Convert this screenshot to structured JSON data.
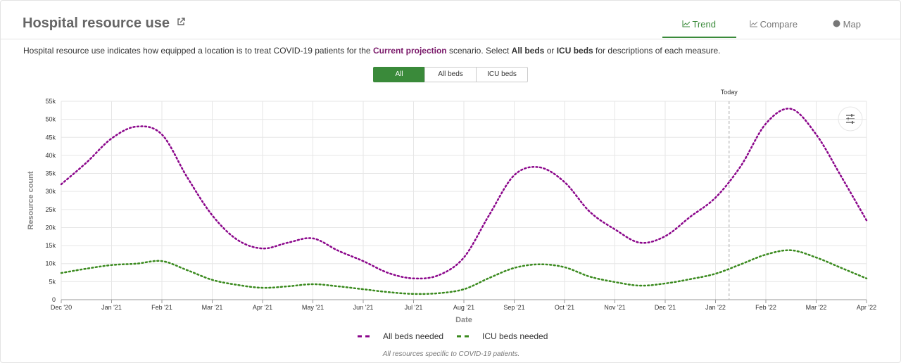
{
  "header": {
    "title": "Hospital resource use",
    "tabs": [
      "Trend",
      "Compare",
      "Map"
    ]
  },
  "description": [
    "Hospital resource use indicates how equipped a location is to treat COVID-19 patients for the ",
    "Current projection",
    " scenario. Select ",
    "All beds",
    " or ",
    "ICU beds",
    " for descriptions of each measure."
  ],
  "toggle": [
    "All",
    "All beds",
    "ICU beds"
  ],
  "chart_data": {
    "type": "line",
    "x_label": "Date",
    "y_label": "Resource count",
    "x": [
      0,
      0.5,
      1,
      1.5,
      2,
      2.5,
      3,
      3.5,
      4,
      4.5,
      5,
      5.5,
      6,
      6.5,
      7,
      7.5,
      8,
      8.5,
      9,
      9.5,
      10,
      10.5,
      11,
      11.5,
      12,
      12.5,
      13,
      13.5,
      14,
      14.5,
      15,
      15.5,
      16
    ],
    "xlim": [
      0,
      16
    ],
    "xticks": [
      {
        "value": 0,
        "label": "Dec '20"
      },
      {
        "value": 1,
        "label": "Jan '21"
      },
      {
        "value": 2,
        "label": "Feb '21"
      },
      {
        "value": 3,
        "label": "Mar '21"
      },
      {
        "value": 4,
        "label": "Apr '21"
      },
      {
        "value": 5,
        "label": "May '21"
      },
      {
        "value": 6,
        "label": "Jun '21"
      },
      {
        "value": 7,
        "label": "Jul '21"
      },
      {
        "value": 8,
        "label": "Aug '21"
      },
      {
        "value": 9,
        "label": "Sep '21"
      },
      {
        "value": 10,
        "label": "Oct '21"
      },
      {
        "value": 11,
        "label": "Nov '21"
      },
      {
        "value": 12,
        "label": "Dec '21"
      },
      {
        "value": 13,
        "label": "Jan '22"
      },
      {
        "value": 14,
        "label": "Feb '22"
      },
      {
        "value": 15,
        "label": "Mar '22"
      },
      {
        "value": 16,
        "label": "Apr '22"
      }
    ],
    "ylim": [
      0,
      55000
    ],
    "yticks": [
      0,
      {
        "value": 5000,
        "label": "5k"
      },
      {
        "value": 10000,
        "label": "10k"
      },
      {
        "value": 15000,
        "label": "15k"
      },
      {
        "value": 20000,
        "label": "20k"
      },
      {
        "value": 25000,
        "label": "25k"
      },
      {
        "value": 30000,
        "label": "30k"
      },
      {
        "value": 35000,
        "label": "35k"
      },
      {
        "value": 40000,
        "label": "40k"
      },
      {
        "value": 45000,
        "label": "45k"
      },
      {
        "value": 50000,
        "label": "50k"
      },
      {
        "value": 55000,
        "label": "55k"
      }
    ],
    "grid": true,
    "series": [
      {
        "name": "All beds needed",
        "color": "#8b068b",
        "values": [
          32000,
          38000,
          44700,
          48000,
          45800,
          34000,
          23400,
          16600,
          14200,
          15800,
          17000,
          13600,
          10700,
          7400,
          5900,
          6800,
          11700,
          23400,
          34500,
          36700,
          32600,
          24400,
          19500,
          15800,
          17600,
          23000,
          28300,
          37000,
          48800,
          52900,
          45800,
          34100,
          22000
        ]
      },
      {
        "name": "ICU beds needed",
        "color": "#3a8a1e",
        "values": [
          7400,
          8600,
          9600,
          10000,
          10700,
          8200,
          5500,
          4100,
          3300,
          3700,
          4300,
          3700,
          2900,
          2100,
          1600,
          1800,
          2900,
          6000,
          8800,
          9800,
          9000,
          6400,
          4900,
          3900,
          4500,
          5700,
          7200,
          9800,
          12500,
          13700,
          11700,
          8800,
          5900
        ]
      }
    ],
    "annotations": [
      {
        "x": 13.27,
        "label": "Today"
      }
    ],
    "footnote": "All resources specific to COVID-19 patients."
  }
}
